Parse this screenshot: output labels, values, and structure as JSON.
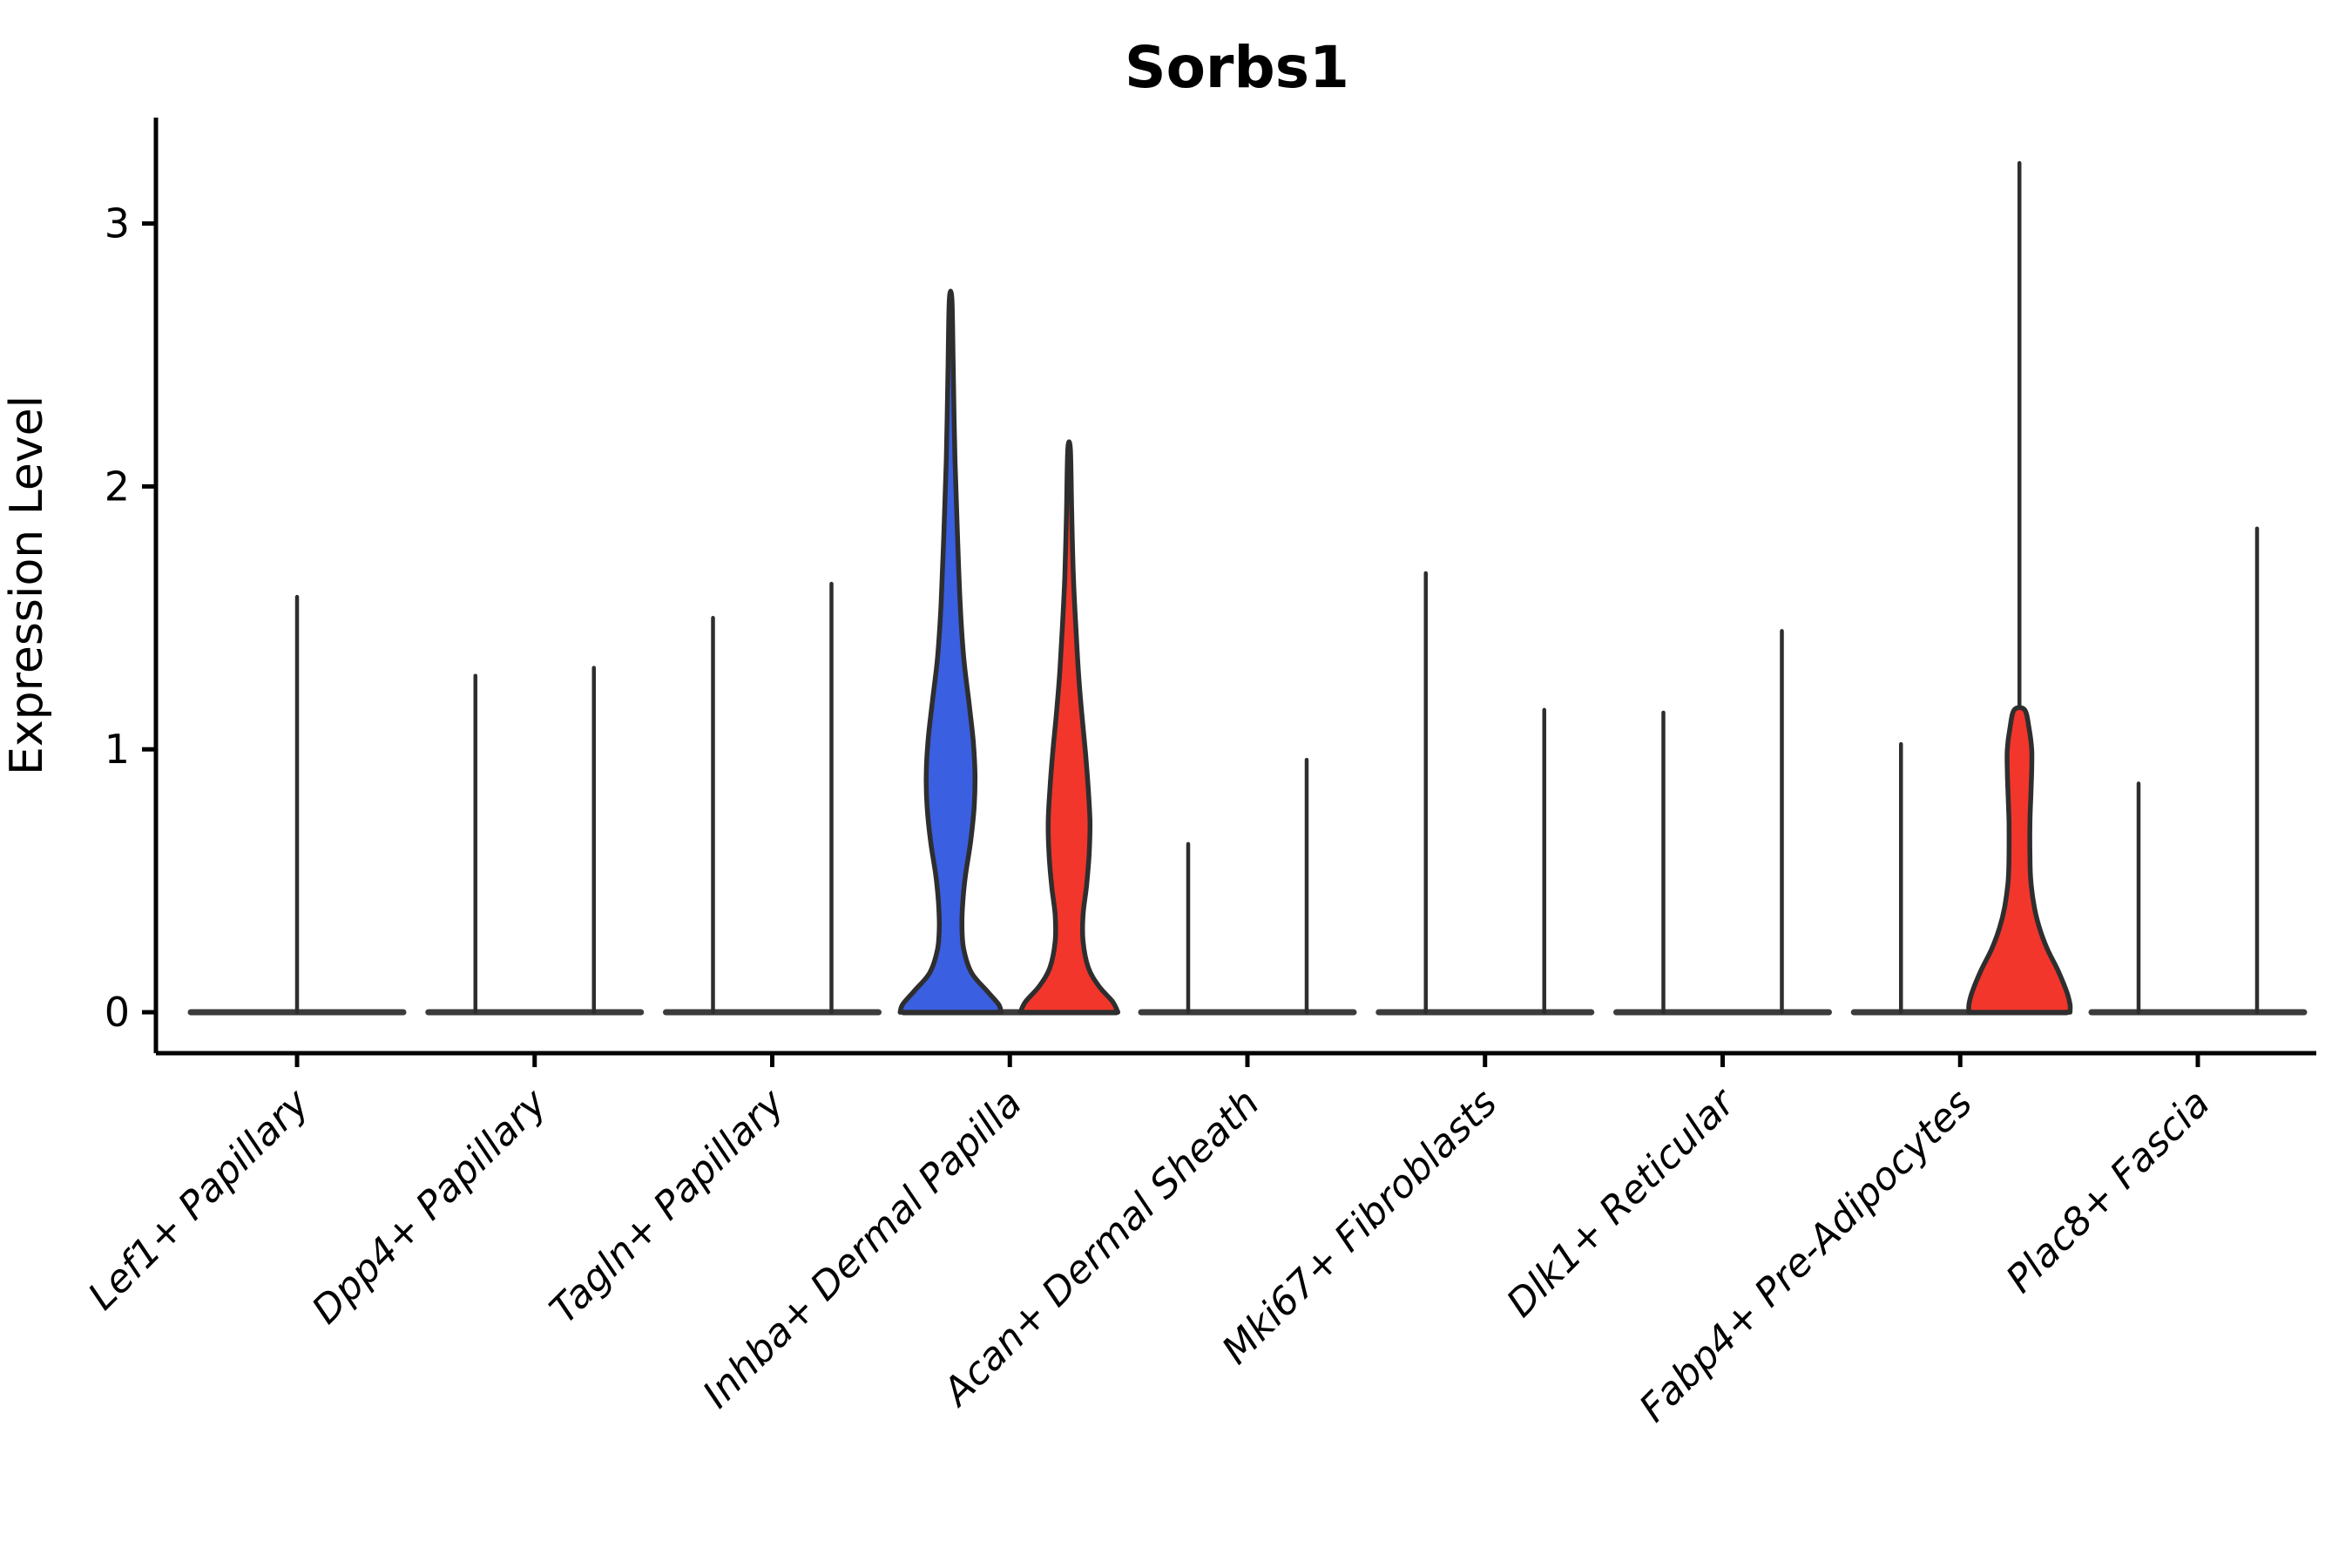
{
  "chart_data": {
    "type": "violin",
    "title": "Sorbs1",
    "ylabel": "Expression Level",
    "xlabel": "",
    "yticks": [
      0,
      1,
      2,
      3
    ],
    "ylim": [
      -0.16,
      3.4
    ],
    "x_tick_rotation": 45,
    "legend": "none",
    "description": "Split violin plot of Sorbs1 expression per fibroblast cluster; most violins collapse to a baseline with a thin max-expression spike; Inhba+ Dermal Papilla (blue/red pair) and Fabp4+ Pre-Adipocytes (red) show filled violin bodies.",
    "categories": [
      {
        "label": "Lef1+ Papillary",
        "violins": [
          {
            "side": "center",
            "fill": "none",
            "max": 1.58
          }
        ]
      },
      {
        "label": "Dpp4+ Papillary",
        "violins": [
          {
            "side": "left",
            "fill": "none",
            "max": 1.28
          },
          {
            "side": "right",
            "fill": "none",
            "max": 1.31
          }
        ]
      },
      {
        "label": "Tagln+ Papillary",
        "violins": [
          {
            "side": "left",
            "fill": "none",
            "max": 1.5
          },
          {
            "side": "right",
            "fill": "none",
            "max": 1.63
          }
        ]
      },
      {
        "label": "Inhba+ Dermal Papilla",
        "violins": [
          {
            "side": "left",
            "fill": "blue",
            "max": 2.71,
            "body": "blue_dp"
          },
          {
            "side": "right",
            "fill": "red",
            "max": 2.14,
            "body": "red_dp"
          }
        ]
      },
      {
        "label": "Acan+ Dermal Sheath",
        "violins": [
          {
            "side": "left",
            "fill": "none",
            "max": 0.64
          },
          {
            "side": "right",
            "fill": "none",
            "max": 0.96
          }
        ]
      },
      {
        "label": "Mki67+ Fibroblasts",
        "violins": [
          {
            "side": "left",
            "fill": "none",
            "max": 1.67
          },
          {
            "side": "right",
            "fill": "none",
            "max": 1.15
          }
        ]
      },
      {
        "label": "Dlk1+ Reticular",
        "violins": [
          {
            "side": "left",
            "fill": "none",
            "max": 1.14
          },
          {
            "side": "right",
            "fill": "none",
            "max": 1.45
          }
        ]
      },
      {
        "label": "Fabp4+ Pre-Adipocytes",
        "violins": [
          {
            "side": "left",
            "fill": "none",
            "max": 1.02
          },
          {
            "side": "right",
            "fill": "red",
            "max": 3.23,
            "body": "red_fabp",
            "body_top": 1.15
          }
        ]
      },
      {
        "label": "Plac8+ Fascia",
        "violins": [
          {
            "side": "left",
            "fill": "none",
            "max": 0.87
          },
          {
            "side": "right",
            "fill": "none",
            "max": 1.84
          }
        ]
      }
    ],
    "profiles": {
      "blue_dp": [
        [
          2.71,
          1.5
        ],
        [
          2.45,
          3
        ],
        [
          2.1,
          5
        ],
        [
          1.8,
          8
        ],
        [
          1.55,
          11
        ],
        [
          1.35,
          15
        ],
        [
          1.18,
          21
        ],
        [
          1.03,
          26
        ],
        [
          0.9,
          28
        ],
        [
          0.78,
          27
        ],
        [
          0.65,
          23
        ],
        [
          0.52,
          17
        ],
        [
          0.42,
          14
        ],
        [
          0.33,
          13
        ],
        [
          0.24,
          15
        ],
        [
          0.15,
          24
        ],
        [
          0.08,
          42
        ],
        [
          0.03,
          55
        ],
        [
          0.0,
          58
        ]
      ],
      "red_dp": [
        [
          2.14,
          1.5
        ],
        [
          1.9,
          3
        ],
        [
          1.65,
          5
        ],
        [
          1.45,
          8
        ],
        [
          1.28,
          11
        ],
        [
          1.12,
          15
        ],
        [
          0.98,
          19
        ],
        [
          0.85,
          22
        ],
        [
          0.72,
          24
        ],
        [
          0.6,
          23
        ],
        [
          0.48,
          20
        ],
        [
          0.37,
          16
        ],
        [
          0.27,
          16
        ],
        [
          0.17,
          22
        ],
        [
          0.1,
          34
        ],
        [
          0.04,
          50
        ],
        [
          0.0,
          56
        ]
      ],
      "red_fabp": [
        [
          1.15,
          6
        ],
        [
          1.08,
          11
        ],
        [
          1.0,
          14
        ],
        [
          0.92,
          14
        ],
        [
          0.82,
          13
        ],
        [
          0.72,
          12
        ],
        [
          0.6,
          12
        ],
        [
          0.5,
          13
        ],
        [
          0.4,
          17
        ],
        [
          0.32,
          23
        ],
        [
          0.24,
          32
        ],
        [
          0.16,
          44
        ],
        [
          0.08,
          54
        ],
        [
          0.03,
          58
        ],
        [
          0.0,
          58
        ]
      ]
    },
    "colors": {
      "blue": "#3A5FE0",
      "red": "#F2362C",
      "outline": "#2E2E2E",
      "baseline": "#3C3C3C",
      "axis": "#000000",
      "text": "#000000"
    }
  }
}
